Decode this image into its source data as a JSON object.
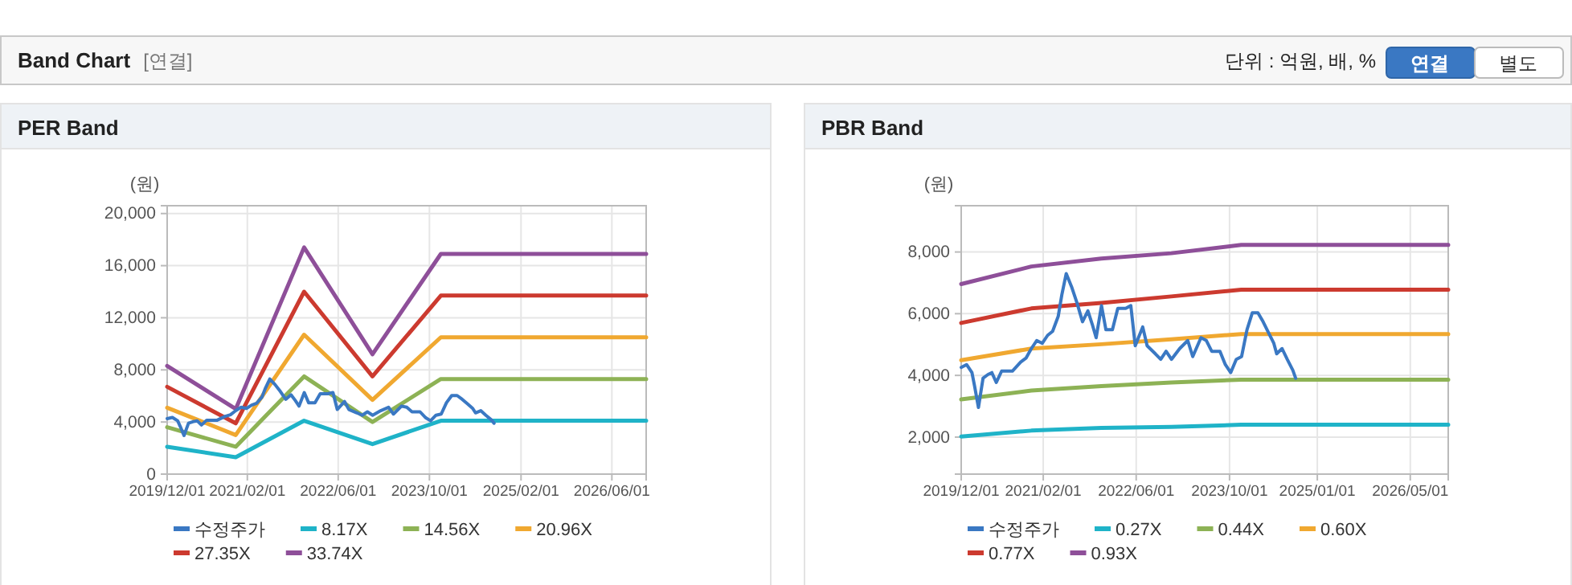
{
  "chart_data": [
    {
      "type": "other",
      "title": "Band Chart",
      "annotations": [
        "[연결]",
        "단위 : 억원, 배, %",
        "연결",
        "별도"
      ]
    },
    {
      "type": "line",
      "title": "PER Band",
      "ylabel": "(원)",
      "grid": true,
      "legend": "bottom",
      "line_style": "solid",
      "marker": "none",
      "xlim": [
        "2019-12-01",
        "2026-12-01"
      ],
      "xticks": [
        {
          "value": "2019-12-01",
          "label": "2019/12/01"
        },
        {
          "value": "2021-02-01",
          "label": "2021/02/01"
        },
        {
          "value": "2022-06-01",
          "label": "2022/06/01"
        },
        {
          "value": "2023-10-01",
          "label": "2023/10/01"
        },
        {
          "value": "2025-02-01",
          "label": "2025/02/01"
        },
        {
          "value": "2026-06-01",
          "label": "2026/06/01"
        }
      ],
      "ylim": [
        0,
        20600
      ],
      "yticks": [
        0,
        {
          "value": 4000,
          "label": "4,000"
        },
        {
          "value": 8000,
          "label": "8,000"
        },
        {
          "value": 12000,
          "label": "12,000"
        },
        {
          "value": 16000,
          "label": "16,000"
        },
        {
          "value": 20000,
          "label": "20,000"
        }
      ],
      "series": [
        {
          "name": "수정주가",
          "color": "#3a78c3",
          "x": [
            "2019-12-01",
            "2019-12-29",
            "2020-01-26",
            "2020-02-09",
            "2020-02-29",
            "2020-03-13",
            "2020-03-24",
            "2020-04-19",
            "2020-05-09",
            "2020-06-01",
            "2020-06-29",
            "2020-08-24",
            "2020-10-06",
            "2020-11-03",
            "2020-12-01",
            "2020-12-29",
            "2021-01-27",
            "2021-02-24",
            "2021-03-22",
            "2021-04-20",
            "2021-05-09",
            "2021-06-01",
            "2021-06-29",
            "2021-07-27",
            "2021-08-25",
            "2021-09-22",
            "2021-10-15",
            "2021-11-04",
            "2021-12-02",
            "2021-12-25",
            "2022-01-28",
            "2022-02-25",
            "2022-04-07",
            "2022-05-04",
            "2022-05-27",
            "2022-07-05",
            "2022-07-28",
            "2022-09-09",
            "2022-10-07",
            "2022-11-04",
            "2022-12-02",
            "2023-01-14",
            "2023-02-25",
            "2023-03-23",
            "2023-05-05",
            "2023-06-02",
            "2023-06-30",
            "2023-08-12",
            "2023-09-09",
            "2023-10-07",
            "2023-11-05",
            "2023-12-03",
            "2023-12-31",
            "2024-01-28",
            "2024-02-26",
            "2024-03-24",
            "2024-04-21",
            "2024-05-19",
            "2024-06-03",
            "2024-07-01",
            "2024-07-28",
            "2024-08-26",
            "2024-09-10"
          ],
          "values": [
            4260,
            4350,
            4090,
            3650,
            2960,
            3480,
            3910,
            4030,
            4090,
            3770,
            4140,
            4140,
            4430,
            4560,
            4870,
            5130,
            5040,
            5300,
            5430,
            5910,
            6610,
            7300,
            6870,
            6350,
            5740,
            6090,
            5650,
            5220,
            6260,
            5480,
            5480,
            6170,
            6170,
            6260,
            4960,
            5570,
            4960,
            4700,
            4520,
            4780,
            4520,
            4870,
            5130,
            4610,
            5220,
            5130,
            4780,
            4780,
            4350,
            4090,
            4520,
            4610,
            5480,
            6030,
            6030,
            5740,
            5390,
            5040,
            4700,
            4870,
            4520,
            4170,
            3910
          ]
        },
        {
          "name": "8.17X",
          "color": "#1fb3c8",
          "x": [
            "2019-12-01",
            "2020-12-01",
            "2021-12-01",
            "2022-12-01",
            "2023-12-01",
            "2026-12-01"
          ],
          "values": [
            2100,
            1300,
            4100,
            2300,
            4100,
            4100
          ]
        },
        {
          "name": "14.56X",
          "color": "#8db255",
          "x": [
            "2019-12-01",
            "2020-12-01",
            "2021-12-01",
            "2022-12-01",
            "2023-12-01",
            "2026-12-01"
          ],
          "values": [
            3600,
            2100,
            7500,
            4000,
            7300,
            7300
          ]
        },
        {
          "name": "20.96X",
          "color": "#f0a830",
          "x": [
            "2019-12-01",
            "2020-12-01",
            "2021-12-01",
            "2022-12-01",
            "2023-12-01",
            "2026-12-01"
          ],
          "values": [
            5100,
            3000,
            10700,
            5700,
            10500,
            10500
          ]
        },
        {
          "name": "27.35X",
          "color": "#cc3a2f",
          "x": [
            "2019-12-01",
            "2020-12-01",
            "2021-12-01",
            "2022-12-01",
            "2023-12-01",
            "2026-12-01"
          ],
          "values": [
            6700,
            3900,
            14000,
            7500,
            13700,
            13700
          ]
        },
        {
          "name": "33.74X",
          "color": "#8e4f99",
          "x": [
            "2019-12-01",
            "2020-12-01",
            "2021-12-01",
            "2022-12-01",
            "2023-12-01",
            "2026-12-01"
          ],
          "values": [
            8300,
            5000,
            17400,
            9200,
            16900,
            16900
          ]
        }
      ]
    },
    {
      "type": "line",
      "title": "PBR Band",
      "ylabel": "(원)",
      "grid": true,
      "legend": "bottom",
      "line_style": "solid",
      "marker": "none",
      "xlim": [
        "2019-12-01",
        "2026-11-15"
      ],
      "xticks": [
        {
          "value": "2019-12-01",
          "label": "2019/12/01"
        },
        {
          "value": "2021-02-01",
          "label": "2021/02/01"
        },
        {
          "value": "2022-06-01",
          "label": "2022/06/01"
        },
        {
          "value": "2023-10-01",
          "label": "2023/10/01"
        },
        {
          "value": "2025-01-01",
          "label": "2025/01/01"
        },
        {
          "value": "2026-05-01",
          "label": "2026/05/01"
        }
      ],
      "ylim": [
        800,
        9500
      ],
      "yticks": [
        {
          "value": 2000,
          "label": "2,000"
        },
        {
          "value": 4000,
          "label": "4,000"
        },
        {
          "value": 6000,
          "label": "6,000"
        },
        {
          "value": 8000,
          "label": "8,000"
        }
      ],
      "series": [
        {
          "name": "수정주가",
          "color": "#3a78c3",
          "x": [
            "2019-12-01",
            "2019-12-29",
            "2020-01-26",
            "2020-02-09",
            "2020-02-29",
            "2020-03-13",
            "2020-03-24",
            "2020-04-19",
            "2020-05-09",
            "2020-06-01",
            "2020-06-29",
            "2020-08-24",
            "2020-10-06",
            "2020-11-03",
            "2020-12-01",
            "2020-12-29",
            "2021-01-27",
            "2021-02-24",
            "2021-03-22",
            "2021-04-20",
            "2021-05-09",
            "2021-06-01",
            "2021-06-29",
            "2021-07-27",
            "2021-08-25",
            "2021-09-22",
            "2021-10-15",
            "2021-11-04",
            "2021-12-02",
            "2021-12-25",
            "2022-01-28",
            "2022-02-25",
            "2022-04-07",
            "2022-05-04",
            "2022-05-27",
            "2022-07-05",
            "2022-07-28",
            "2022-09-09",
            "2022-10-07",
            "2022-11-04",
            "2022-12-02",
            "2023-01-14",
            "2023-02-25",
            "2023-03-23",
            "2023-05-05",
            "2023-06-02",
            "2023-06-30",
            "2023-08-12",
            "2023-09-09",
            "2023-10-07",
            "2023-11-05",
            "2023-12-03",
            "2023-12-31",
            "2024-01-28",
            "2024-02-26",
            "2024-03-24",
            "2024-04-21",
            "2024-05-19",
            "2024-06-03",
            "2024-07-01",
            "2024-07-28",
            "2024-08-26",
            "2024-09-10"
          ],
          "values": [
            4260,
            4350,
            4090,
            3650,
            2960,
            3480,
            3910,
            4030,
            4090,
            3770,
            4140,
            4140,
            4430,
            4560,
            4870,
            5130,
            5040,
            5300,
            5430,
            5910,
            6610,
            7300,
            6870,
            6350,
            5740,
            6090,
            5650,
            5220,
            6260,
            5480,
            5480,
            6170,
            6170,
            6260,
            4960,
            5570,
            4960,
            4700,
            4520,
            4780,
            4520,
            4870,
            5130,
            4610,
            5220,
            5130,
            4780,
            4780,
            4350,
            4090,
            4520,
            4610,
            5480,
            6030,
            6030,
            5740,
            5390,
            5040,
            4700,
            4870,
            4520,
            4170,
            3910
          ]
        },
        {
          "name": "0.27X",
          "color": "#1fb3c8",
          "x": [
            "2019-12-01",
            "2020-12-01",
            "2021-12-01",
            "2022-12-01",
            "2023-12-01",
            "2026-11-15"
          ],
          "values": [
            2020,
            2210,
            2300,
            2330,
            2400,
            2400
          ]
        },
        {
          "name": "0.44X",
          "color": "#8db255",
          "x": [
            "2019-12-01",
            "2020-12-01",
            "2021-12-01",
            "2022-12-01",
            "2023-12-01",
            "2026-11-15"
          ],
          "values": [
            3220,
            3510,
            3650,
            3770,
            3860,
            3860
          ]
        },
        {
          "name": "0.60X",
          "color": "#f0a830",
          "x": [
            "2019-12-01",
            "2020-12-01",
            "2021-12-01",
            "2022-12-01",
            "2023-12-01",
            "2026-11-15"
          ],
          "values": [
            4490,
            4870,
            5010,
            5170,
            5340,
            5340
          ]
        },
        {
          "name": "0.77X",
          "color": "#cc3a2f",
          "x": [
            "2019-12-01",
            "2020-12-01",
            "2021-12-01",
            "2022-12-01",
            "2023-12-01",
            "2026-11-15"
          ],
          "values": [
            5700,
            6170,
            6350,
            6560,
            6780,
            6780
          ]
        },
        {
          "name": "0.93X",
          "color": "#8e4f99",
          "x": [
            "2019-12-01",
            "2020-12-01",
            "2021-12-01",
            "2022-12-01",
            "2023-12-01",
            "2026-11-15"
          ],
          "values": [
            6960,
            7530,
            7790,
            7960,
            8230,
            8230
          ]
        }
      ]
    }
  ]
}
